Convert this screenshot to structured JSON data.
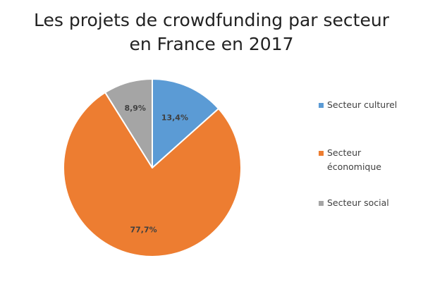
{
  "chart_data": {
    "type": "pie",
    "title_lines": [
      "Les projets de crowdfunding par secteur",
      "en France en 2017"
    ],
    "slices": [
      {
        "name": "Secteur culturel",
        "value": 13.4,
        "label": "13,4%",
        "color": "#5b9bd5"
      },
      {
        "name": "Secteur économique",
        "value": 77.7,
        "label": "77,7%",
        "color": "#ed7d31"
      },
      {
        "name": "Secteur social",
        "value": 8.9,
        "label": "8,9%",
        "color": "#a5a5a5"
      }
    ],
    "start_angle_deg": 0,
    "direction": "clockwise",
    "legend_position": "right"
  }
}
